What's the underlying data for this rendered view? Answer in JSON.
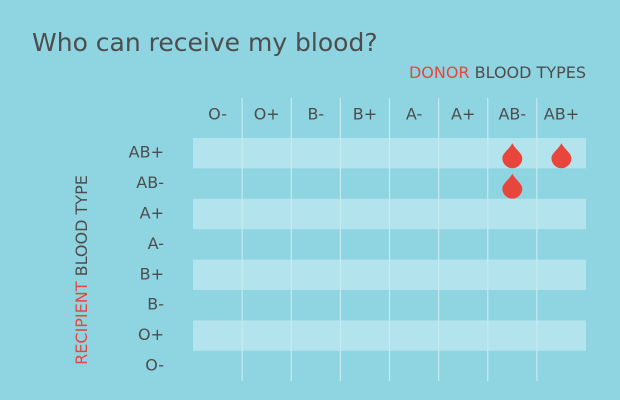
{
  "title": "Who can receive my blood?",
  "donor_label": {
    "highlight": "DONOR",
    "rest": "BLOOD TYPES"
  },
  "recipient_label": {
    "highlight": "RECIPIENT",
    "rest": "BLOOD TYPE"
  },
  "table": {
    "columns": [
      "O-",
      "O+",
      "B-",
      "B+",
      "A-",
      "A+",
      "AB-",
      "AB+"
    ],
    "rows": [
      "AB+",
      "AB-",
      "A+",
      "A-",
      "B+",
      "B-",
      "O+",
      "O-"
    ],
    "cells": [
      [
        false,
        false,
        false,
        false,
        false,
        false,
        true,
        true
      ],
      [
        false,
        false,
        false,
        false,
        false,
        false,
        true,
        false
      ],
      [
        false,
        false,
        false,
        false,
        false,
        false,
        false,
        false
      ],
      [
        false,
        false,
        false,
        false,
        false,
        false,
        false,
        false
      ],
      [
        false,
        false,
        false,
        false,
        false,
        false,
        false,
        false
      ],
      [
        false,
        false,
        false,
        false,
        false,
        false,
        false,
        false
      ],
      [
        false,
        false,
        false,
        false,
        false,
        false,
        false,
        false
      ],
      [
        false,
        false,
        false,
        false,
        false,
        false,
        false,
        false
      ]
    ]
  }
}
